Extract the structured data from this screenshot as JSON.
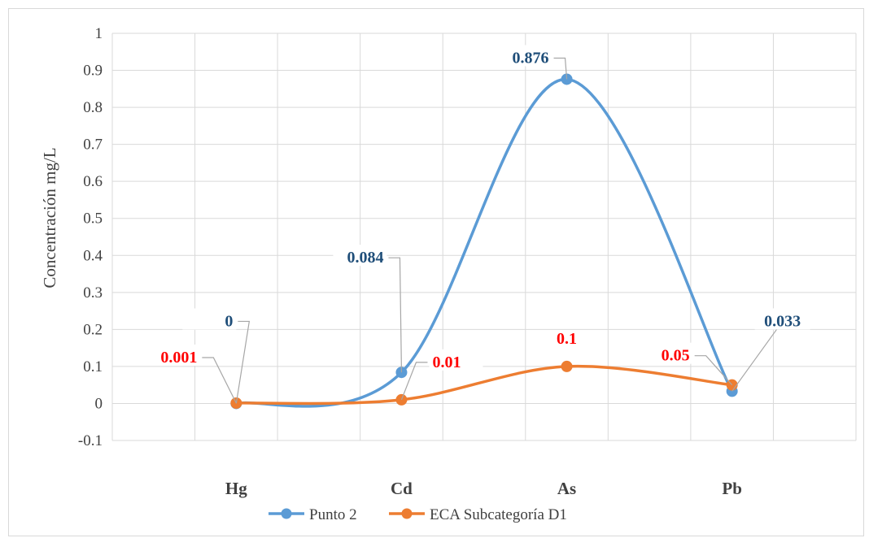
{
  "chart_data": {
    "type": "line",
    "smooth": true,
    "categories": [
      "",
      "Hg",
      "",
      "Cd",
      "",
      "As",
      "",
      "Pb",
      ""
    ],
    "ylabel": "Concentración mg/L",
    "xlabel": "",
    "ylim": [
      -0.1,
      1
    ],
    "yticks": [
      "-0.1",
      "0",
      "0.1",
      "0.2",
      "0.3",
      "0.4",
      "0.5",
      "0.6",
      "0.7",
      "0.8",
      "0.9",
      "1"
    ],
    "grid": true,
    "legend_position": "bottom",
    "series": [
      {
        "name": "Punto 2",
        "color": "#5b9bd5",
        "label_color": "#1f4e79",
        "points": [
          {
            "category": "Hg",
            "value": 0,
            "label": "0"
          },
          {
            "category": "Cd",
            "value": 0.084,
            "label": "0.084"
          },
          {
            "category": "As",
            "value": 0.876,
            "label": "0.876"
          },
          {
            "category": "Pb",
            "value": 0.033,
            "label": "0.033"
          }
        ]
      },
      {
        "name": "ECA Subcategoría D1",
        "color": "#ed7d31",
        "label_color": "#ff0000",
        "points": [
          {
            "category": "Hg",
            "value": 0.001,
            "label": "0.001"
          },
          {
            "category": "Cd",
            "value": 0.01,
            "label": "0.01"
          },
          {
            "category": "As",
            "value": 0.1,
            "label": "0.1"
          },
          {
            "category": "Pb",
            "value": 0.05,
            "label": "0.05"
          }
        ]
      }
    ]
  }
}
